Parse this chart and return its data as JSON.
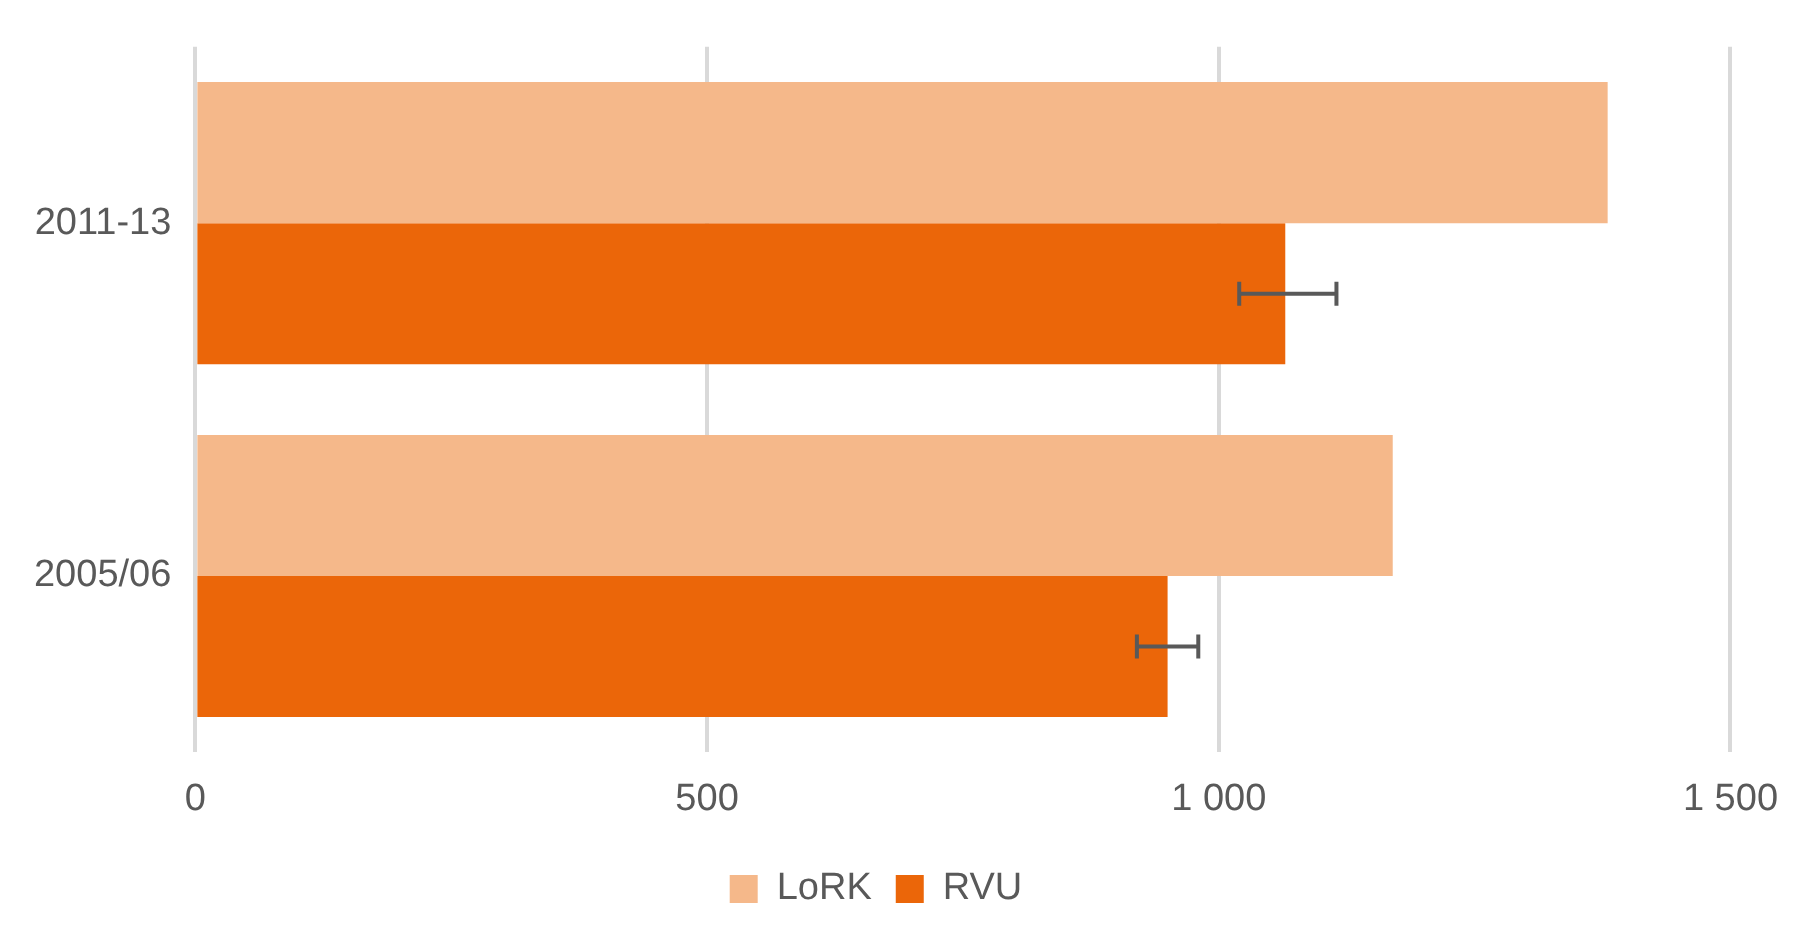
{
  "chart_data": {
    "type": "bar",
    "orientation": "horizontal",
    "categories": [
      "2011-13",
      "2005/06"
    ],
    "series": [
      {
        "name": "LoRK",
        "color": "#f5b88a",
        "values": [
          1380,
          1170
        ]
      },
      {
        "name": "RVU",
        "color": "#eb6609",
        "values": [
          1065,
          950
        ],
        "errors": [
          [
            1020,
            1115
          ],
          [
            920,
            980
          ]
        ]
      }
    ],
    "xlim": [
      0,
      1500
    ],
    "xticks": [
      0,
      500,
      {
        "value": 1000,
        "label": "1 000"
      },
      {
        "value": 1500,
        "label": "1 500"
      }
    ],
    "grid": "x",
    "legend": "bottom"
  }
}
